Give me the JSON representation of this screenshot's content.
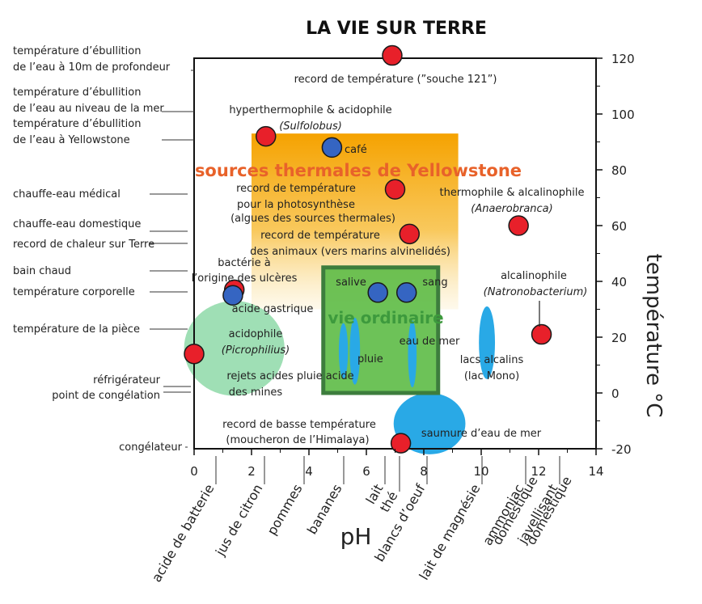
{
  "chart_data": {
    "type": "scatter",
    "title": "LA VIE SUR TERRE",
    "xlabel": "pH",
    "ylabel": "température °C",
    "xlim": [
      0,
      14
    ],
    "ylim": [
      -20,
      120
    ],
    "x_ticks": [
      0,
      2,
      4,
      6,
      8,
      10,
      12,
      14
    ],
    "y_ticks": [
      -20,
      0,
      20,
      40,
      60,
      80,
      100,
      120
    ],
    "regions": [
      {
        "label": "sources thermales de Yellowstone",
        "shape": "rect",
        "x": [
          2,
          9.2
        ],
        "y": [
          30,
          93
        ],
        "color": "#f5a800"
      },
      {
        "label": "vie ordinaire",
        "shape": "rect",
        "x": [
          4.5,
          8.5
        ],
        "y": [
          0,
          45
        ],
        "color": "#5dbb46",
        "stroke": "#3d7d3d"
      },
      {
        "label": "acidophile",
        "label_italic": "Picrophilius",
        "shape": "ellipse",
        "cx": 1.4,
        "cy": 16,
        "rx": 1.75,
        "ry": 17,
        "color": "#8ed9a8"
      },
      {
        "label": "saumure d’eau de mer",
        "shape": "ellipse",
        "cx": 8.2,
        "cy": -11,
        "rx": 1.25,
        "ry": 11,
        "color": "#29a9e6"
      },
      {
        "label": "pluie",
        "shape": "ellipse",
        "cx": 5.6,
        "cy": 15,
        "rx": 0.18,
        "ry": 12,
        "color": "#29a9e6"
      },
      {
        "label": "",
        "shape": "ellipse",
        "cx": 5.2,
        "cy": 15,
        "rx": 0.16,
        "ry": 10,
        "color": "#29a9e6"
      },
      {
        "label": "eau de mer",
        "shape": "ellipse",
        "cx": 7.6,
        "cy": 14,
        "rx": 0.15,
        "ry": 12,
        "color": "#29a9e6"
      },
      {
        "label": "lacs alcalins",
        "label2": "(lac Mono)",
        "shape": "ellipse",
        "cx": 10.2,
        "cy": 18,
        "rx": 0.28,
        "ry": 13,
        "color": "#29a9e6"
      }
    ],
    "points": [
      {
        "x": 6.9,
        "y": 121,
        "color": "red",
        "label": "record de température (”souche 121”)"
      },
      {
        "x": 2.5,
        "y": 92,
        "color": "red",
        "label": "hyperthermophile & acidophile",
        "label_italic": "Sulfolobus"
      },
      {
        "x": 4.8,
        "y": 88,
        "color": "blue",
        "label": "café"
      },
      {
        "x": 7.0,
        "y": 73,
        "color": "red",
        "label": "record de température pour la photosynthèse (algues des sources thermales)"
      },
      {
        "x": 7.5,
        "y": 57,
        "color": "red",
        "label": "record de température des animaux (vers marins alvinelidés)"
      },
      {
        "x": 11.3,
        "y": 60,
        "color": "red",
        "label": "thermophile & alcalinophile",
        "label_italic": "Anaerobranca"
      },
      {
        "x": 1.4,
        "y": 37,
        "color": "red",
        "label": "bactérie à l’origine des ulcères"
      },
      {
        "x": 1.35,
        "y": 35,
        "color": "blue",
        "label": "acide gastrique"
      },
      {
        "x": 6.4,
        "y": 36,
        "color": "blue",
        "label": "salive"
      },
      {
        "x": 7.4,
        "y": 36,
        "color": "blue",
        "label": "sang"
      },
      {
        "x": 12.1,
        "y": 21,
        "color": "red",
        "label": "alcalinophile",
        "label_italic": "Natronobacterium"
      },
      {
        "x": 0,
        "y": 14,
        "color": "red",
        "label": ""
      },
      {
        "x": 7.2,
        "y": -18,
        "color": "red",
        "label": "record de basse température (moucheron de l’Himalaya)"
      }
    ],
    "left_annotations": [
      "température d’ébullition de l’eau à 10m de profondeur",
      "température d’ébullition de l’eau au niveau de la mer",
      "température d’ébullition de l’eau à Yellowstone",
      "chauffe-eau médical",
      "chauffe-eau domestique",
      "record de chaleur sur Terre",
      "bain chaud",
      "température corporelle",
      "température de la pièce",
      "réfrigérateur",
      "point de congélation",
      "congélateur"
    ],
    "bottom_annotations": [
      "acide de batterie",
      "jus de citron",
      "pommes",
      "bananes",
      "lait",
      "thé",
      "blancs d’oeuf",
      "lait de magnésie",
      "ammoniac domestique",
      "javellisant domestique"
    ],
    "extra_labels": [
      "rejets acides pluie acide des mines"
    ],
    "colors": {
      "red_point": "#e8202a",
      "blue_point": "#3565c2",
      "hot_springs_text": "#e8622a",
      "ordinary_life_text": "#3d9a3d"
    }
  }
}
